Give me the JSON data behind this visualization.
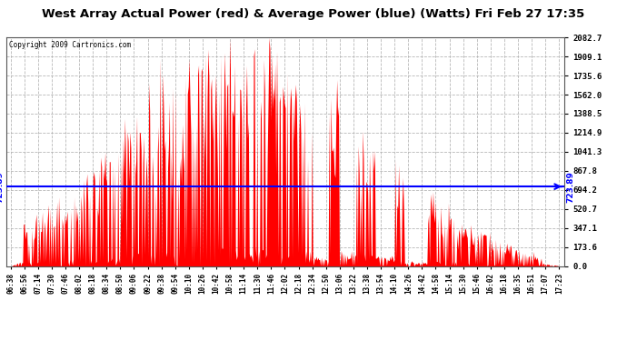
{
  "title": "West Array Actual Power (red) & Average Power (blue) (Watts) Fri Feb 27 17:35",
  "copyright": "Copyright 2009 Cartronics.com",
  "avg_power": 723.89,
  "y_max": 2082.7,
  "y_min": 0.0,
  "y_ticks": [
    0.0,
    173.6,
    347.1,
    520.7,
    694.2,
    867.8,
    1041.3,
    1214.9,
    1388.5,
    1562.0,
    1735.6,
    1909.1,
    2082.7
  ],
  "x_labels": [
    "06:38",
    "06:56",
    "07:14",
    "07:30",
    "07:46",
    "08:02",
    "08:18",
    "08:34",
    "08:50",
    "09:06",
    "09:22",
    "09:38",
    "09:54",
    "10:10",
    "10:26",
    "10:42",
    "10:58",
    "11:14",
    "11:30",
    "11:46",
    "12:02",
    "12:18",
    "12:34",
    "12:50",
    "13:06",
    "13:22",
    "13:38",
    "13:54",
    "14:10",
    "14:26",
    "14:42",
    "14:58",
    "15:14",
    "15:30",
    "15:46",
    "16:02",
    "16:18",
    "16:35",
    "16:51",
    "17:07",
    "17:23"
  ],
  "background_color": "#ffffff",
  "area_color": "#ff0000",
  "line_color": "#0000ff",
  "grid_color": "#b0b0b0",
  "title_bg": "#c8c8c8"
}
